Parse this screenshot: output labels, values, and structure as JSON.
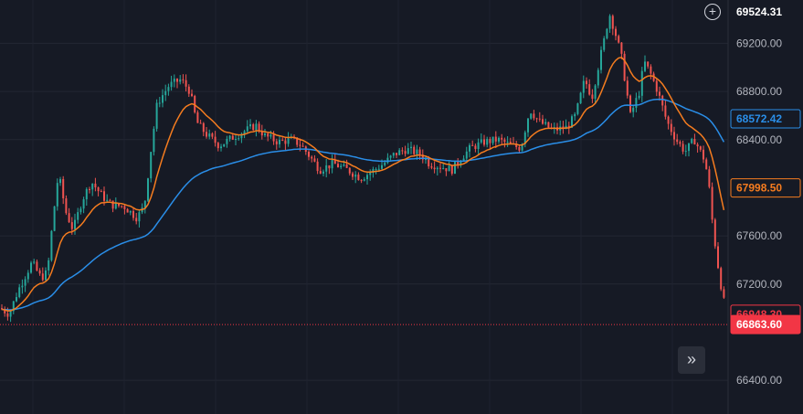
{
  "chart_data": {
    "type": "candlestick",
    "price_axis": {
      "ticks": [
        69200,
        68800,
        68400,
        67600,
        67200,
        66400
      ],
      "tick_labels": [
        "69200.00",
        "68800.00",
        "68400.00",
        "67600.00",
        "67200.00",
        "66400.00"
      ],
      "range": [
        66120,
        69560
      ]
    },
    "crosshair_price": "69524.31",
    "current_price": {
      "label": "66863.60",
      "value": 66863.6,
      "color": "#f23645"
    },
    "indicators": [
      {
        "label": "68572.42",
        "value": 68572.42,
        "color": "#2a8ee8",
        "kind": "slow-ma"
      },
      {
        "label": "67998.50",
        "value": 67998.5,
        "color": "#f57c1f",
        "kind": "fast-ma"
      },
      {
        "label": "66948.30",
        "value": 66948.3,
        "color": "#f23645",
        "kind": "last-close"
      }
    ],
    "candle_colors": {
      "up": "#26a69a",
      "down": "#ef5350"
    },
    "anchors": [
      [
        0,
        67000
      ],
      [
        10,
        66950
      ],
      [
        20,
        67150
      ],
      [
        35,
        67380
      ],
      [
        45,
        67250
      ],
      [
        52,
        67300
      ],
      [
        58,
        67750
      ],
      [
        64,
        68120
      ],
      [
        72,
        67800
      ],
      [
        80,
        67650
      ],
      [
        90,
        67900
      ],
      [
        100,
        68050
      ],
      [
        110,
        67950
      ],
      [
        118,
        67880
      ],
      [
        125,
        67850
      ],
      [
        135,
        67850
      ],
      [
        150,
        67750
      ],
      [
        158,
        67850
      ],
      [
        165,
        68300
      ],
      [
        172,
        68700
      ],
      [
        185,
        68850
      ],
      [
        198,
        68900
      ],
      [
        208,
        68800
      ],
      [
        215,
        68550
      ],
      [
        225,
        68450
      ],
      [
        240,
        68350
      ],
      [
        255,
        68420
      ],
      [
        270,
        68480
      ],
      [
        280,
        68520
      ],
      [
        290,
        68430
      ],
      [
        305,
        68380
      ],
      [
        320,
        68400
      ],
      [
        330,
        68350
      ],
      [
        340,
        68250
      ],
      [
        350,
        68150
      ],
      [
        365,
        68200
      ],
      [
        380,
        68150
      ],
      [
        395,
        68080
      ],
      [
        410,
        68150
      ],
      [
        420,
        68200
      ],
      [
        432,
        68280
      ],
      [
        445,
        68320
      ],
      [
        460,
        68280
      ],
      [
        470,
        68200
      ],
      [
        480,
        68180
      ],
      [
        495,
        68150
      ],
      [
        505,
        68250
      ],
      [
        515,
        68330
      ],
      [
        530,
        68380
      ],
      [
        545,
        68400
      ],
      [
        560,
        68350
      ],
      [
        570,
        68330
      ],
      [
        580,
        68650
      ],
      [
        590,
        68550
      ],
      [
        605,
        68480
      ],
      [
        620,
        68500
      ],
      [
        630,
        68600
      ],
      [
        640,
        68900
      ],
      [
        648,
        68750
      ],
      [
        656,
        69050
      ],
      [
        662,
        69250
      ],
      [
        667,
        69450
      ],
      [
        673,
        69300
      ],
      [
        680,
        69100
      ],
      [
        690,
        68600
      ],
      [
        700,
        68800
      ],
      [
        705,
        69050
      ],
      [
        712,
        68950
      ],
      [
        720,
        68800
      ],
      [
        730,
        68550
      ],
      [
        740,
        68400
      ],
      [
        750,
        68300
      ],
      [
        760,
        68400
      ],
      [
        770,
        68250
      ],
      [
        775,
        68100
      ],
      [
        780,
        67700
      ],
      [
        785,
        67400
      ],
      [
        790,
        67150
      ],
      [
        795,
        66950
      ]
    ]
  }
}
